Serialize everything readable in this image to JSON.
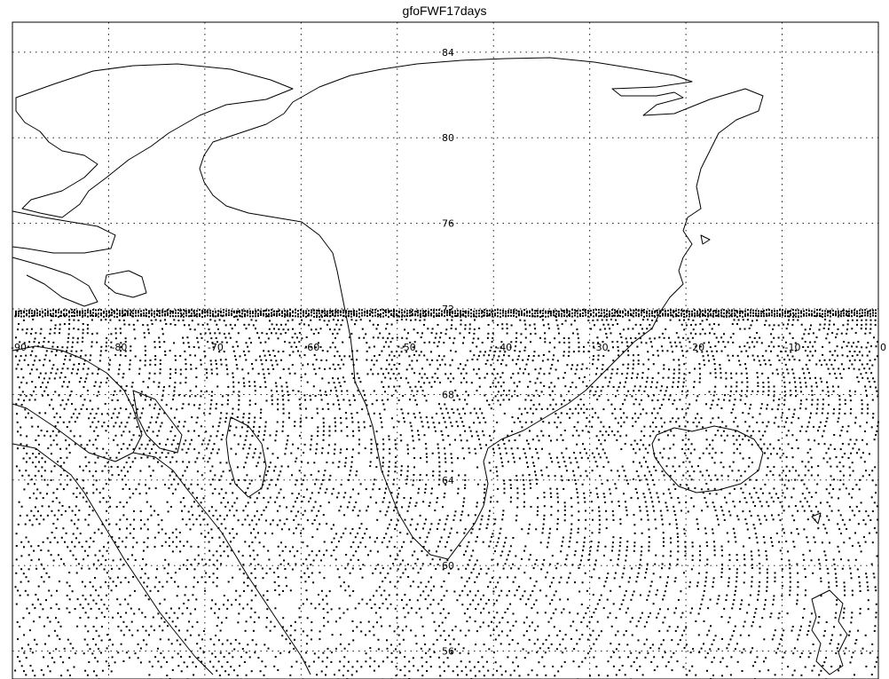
{
  "title": "gfoFWF17days",
  "latitude_labels": [
    "84",
    "80",
    "76",
    "72",
    "68",
    "64",
    "60",
    "56"
  ],
  "longitude_labels": [
    "-90",
    "-80",
    "-70",
    "-60",
    "-50",
    "-40",
    "-30",
    "-20",
    "-10",
    "0"
  ],
  "lon_range": [
    -90,
    0
  ],
  "lat_range": [
    55,
    85
  ],
  "grid": true,
  "track_coverage_south_of_lat": 72,
  "colors": {
    "background": "#ffffff",
    "lines": "#000000",
    "tracks": "#000000"
  }
}
